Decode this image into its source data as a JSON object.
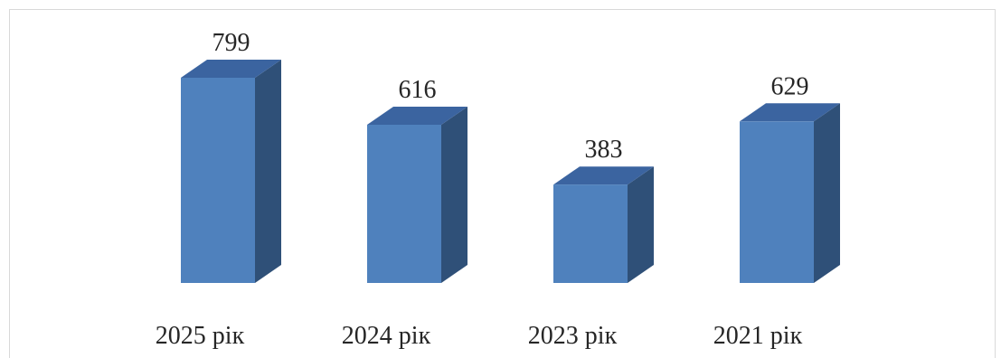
{
  "chart_data": {
    "type": "bar",
    "style": "3d-column",
    "categories": [
      "2025 рік",
      "2024 рік",
      "2023 рік",
      "2021 рік"
    ],
    "values": [
      799,
      616,
      383,
      629
    ],
    "data_labels": [
      "799",
      "616",
      "383",
      "629"
    ],
    "title": "",
    "xlabel": "",
    "ylabel": "",
    "ylim": [
      0,
      800
    ],
    "grid": false,
    "legend": "none",
    "colors": {
      "front": "#4f81bd",
      "side": "#2f5078",
      "top": "#3b64a0"
    }
  }
}
